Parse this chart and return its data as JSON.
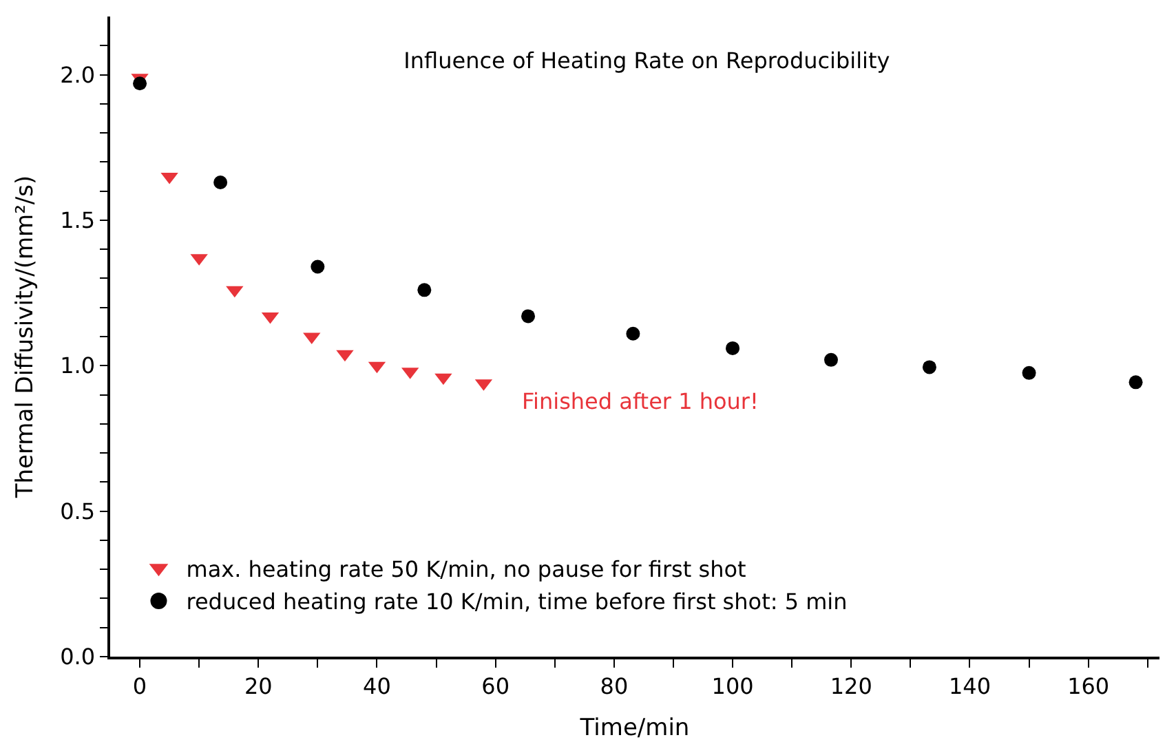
{
  "chart_data": {
    "type": "scatter",
    "title": "Influence of Heating Rate on Reproducibility",
    "xlabel": "Time/min",
    "ylabel": "Thermal Diffusivity/(mm²/s)",
    "series": [
      {
        "name": "max. heating rate 50 K/min, no pause for first shot",
        "color": "#e8343a",
        "marker": "triangle",
        "x": [
          0,
          5,
          10,
          16,
          22,
          29,
          34.6,
          40,
          45.6,
          51.2,
          58
        ],
        "values": [
          1.99,
          1.65,
          1.37,
          1.26,
          1.17,
          1.1,
          1.04,
          1.0,
          0.98,
          0.96,
          0.94
        ]
      },
      {
        "name": "reduced heating rate 10 K/min, time before first shot: 5 min",
        "color": "#000000",
        "marker": "circle",
        "x": [
          0,
          13.6,
          30,
          48,
          65.5,
          83.2,
          100,
          116.6,
          133.2,
          150,
          168
        ],
        "values": [
          1.97,
          1.63,
          1.34,
          1.26,
          1.17,
          1.11,
          1.06,
          1.02,
          0.995,
          0.975,
          0.943
        ]
      }
    ],
    "annotations": [
      "Finished after 1 hour!"
    ],
    "xlim": [
      -5,
      172
    ],
    "ylim": [
      0,
      2.2
    ],
    "xticks": [
      0,
      {
        "value": 10,
        "label": null
      },
      20,
      {
        "value": 30,
        "label": null
      },
      40,
      {
        "value": 50,
        "label": null
      },
      60,
      {
        "value": 70,
        "label": null
      },
      80,
      {
        "value": 90,
        "label": null
      },
      100,
      {
        "value": 110,
        "label": null
      },
      120,
      {
        "value": 130,
        "label": null
      },
      140,
      {
        "value": 150,
        "label": null
      },
      160,
      {
        "value": 170,
        "label": null
      }
    ],
    "yticks": [
      {
        "value": 0,
        "label": "0.0"
      },
      {
        "value": 0.1,
        "label": null
      },
      {
        "value": 0.2,
        "label": null
      },
      {
        "value": 0.3,
        "label": null
      },
      {
        "value": 0.4,
        "label": null
      },
      {
        "value": 0.5,
        "label": "0.5"
      },
      {
        "value": 0.6,
        "label": null
      },
      {
        "value": 0.7,
        "label": null
      },
      {
        "value": 0.8,
        "label": null
      },
      {
        "value": 0.9,
        "label": null
      },
      {
        "value": 1.0,
        "label": "1.0"
      },
      {
        "value": 1.1,
        "label": null
      },
      {
        "value": 1.2,
        "label": null
      },
      {
        "value": 1.3,
        "label": null
      },
      {
        "value": 1.4,
        "label": null
      },
      {
        "value": 1.5,
        "label": "1.5"
      },
      {
        "value": 1.6,
        "label": null
      },
      {
        "value": 1.7,
        "label": null
      },
      {
        "value": 1.8,
        "label": null
      },
      {
        "value": 1.9,
        "label": null
      },
      {
        "value": 2.0,
        "label": "2.0"
      },
      {
        "value": 2.1,
        "label": null
      }
    ],
    "legend": "bottom left"
  }
}
